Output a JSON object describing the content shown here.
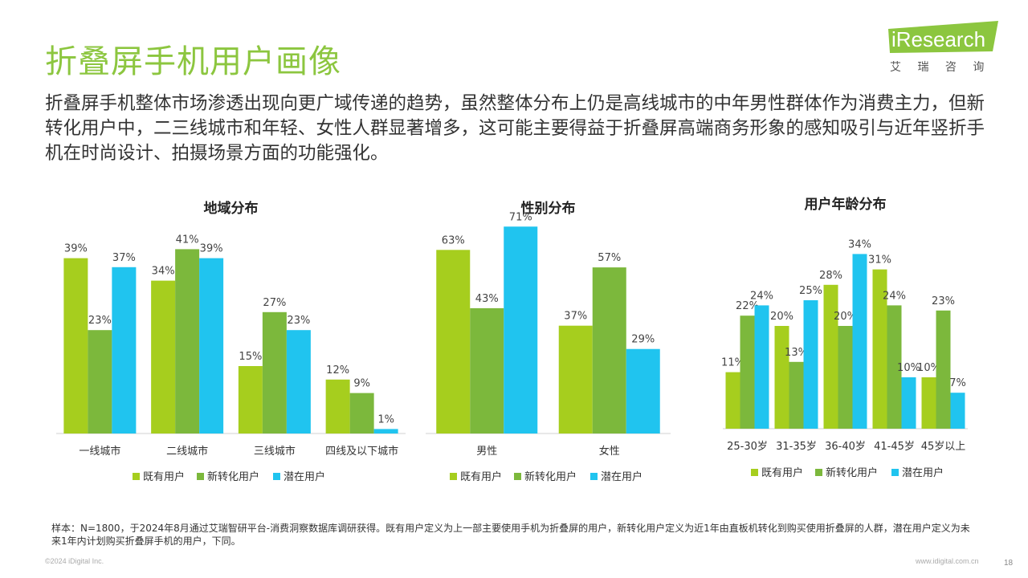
{
  "page": {
    "title": "折叠屏手机用户画像",
    "summary": "折叠屏手机整体市场渗透出现向更广域传递的趋势，虽然整体分布上仍是高线城市的中年男性群体作为消费主力，但新转化用户中，二三线城市和年轻、女性人群显著增多，这可能主要得益于折叠屏高端商务形象的感知吸引与近年竖折手机在时尚设计、拍摄场景方面的功能强化。",
    "note": "样本：N=1800，于2024年8月通过艾瑞智研平台-消费洞察数据库调研获得。既有用户定义为上一部主要使用手机为折叠屏的用户，新转化用户定义为近1年由直板机转化到购买使用折叠屏的人群，潜在用户定义为未来1年内计划购买折叠屏手机的用户，下同。",
    "copyright": "©2024 iDigital Inc.",
    "website": "www.idigital.com.cn",
    "page_number": "18"
  },
  "logo": {
    "text": "iResearch",
    "subtitle": "艾 瑞 咨 询",
    "color": "#8cc63f"
  },
  "colors": {
    "existing": "#a6ce1e",
    "converted": "#7cb83c",
    "potential": "#20c4ef"
  },
  "chart_data": [
    {
      "type": "bar",
      "title": "地域分布",
      "categories": [
        "一线城市",
        "二线城市",
        "三线城市",
        "四线及以下城市"
      ],
      "series": [
        {
          "name": "既有用户",
          "values": [
            39,
            34,
            15,
            12
          ]
        },
        {
          "name": "新转化用户",
          "values": [
            23,
            41,
            27,
            9
          ]
        },
        {
          "name": "潜在用户",
          "values": [
            37,
            39,
            23,
            1
          ]
        }
      ],
      "value_suffix": "%",
      "legend_position": "bottom"
    },
    {
      "type": "bar",
      "title": "性别分布",
      "categories": [
        "男性",
        "女性"
      ],
      "series": [
        {
          "name": "既有用户",
          "values": [
            63,
            37
          ]
        },
        {
          "name": "新转化用户",
          "values": [
            43,
            57
          ]
        },
        {
          "name": "潜在用户",
          "values": [
            71,
            29
          ]
        }
      ],
      "value_suffix": "%",
      "legend_position": "bottom"
    },
    {
      "type": "bar",
      "title": "用户年龄分布",
      "categories": [
        "25-30岁",
        "31-35岁",
        "36-40岁",
        "41-45岁",
        "45岁以上"
      ],
      "series": [
        {
          "name": "既有用户",
          "values": [
            11,
            20,
            28,
            31,
            10
          ]
        },
        {
          "name": "新转化用户",
          "values": [
            22,
            13,
            20,
            24,
            23
          ]
        },
        {
          "name": "潜在用户",
          "values": [
            24,
            25,
            34,
            10,
            7
          ]
        }
      ],
      "value_suffix": "%",
      "legend_position": "bottom"
    }
  ]
}
